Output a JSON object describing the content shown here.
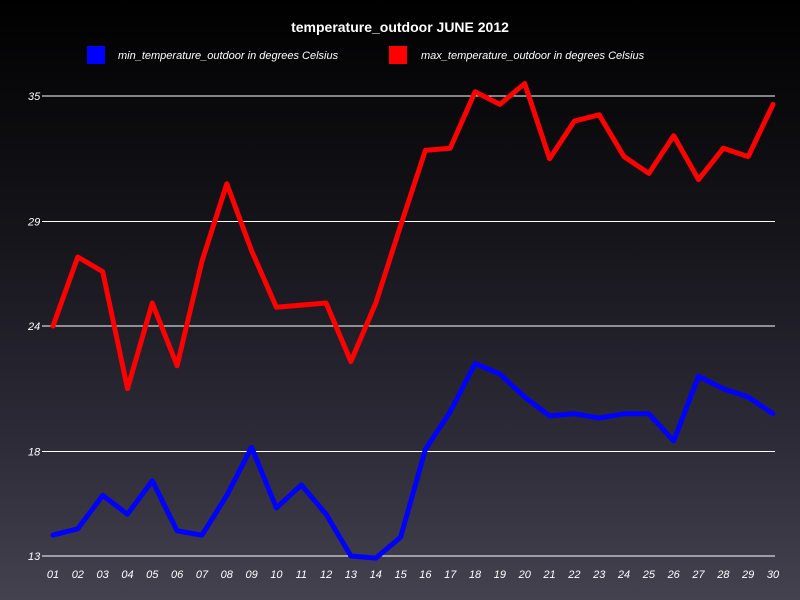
{
  "chart_data": {
    "type": "line",
    "title": "temperature_outdoor JUNE 2012",
    "categories": [
      "01",
      "02",
      "03",
      "04",
      "05",
      "06",
      "07",
      "08",
      "09",
      "10",
      "11",
      "12",
      "13",
      "14",
      "15",
      "16",
      "17",
      "18",
      "19",
      "20",
      "21",
      "22",
      "23",
      "24",
      "25",
      "26",
      "27",
      "28",
      "29",
      "30"
    ],
    "y_ticks": [
      "13",
      "18",
      "24",
      "29",
      "35"
    ],
    "ylim": [
      13,
      35
    ],
    "grid": true,
    "legend_position": "top",
    "series": [
      {
        "name": "min_temperature_outdoor in degrees Celsius",
        "color": "#0000ff",
        "values": [
          14.0,
          14.3,
          15.9,
          15.0,
          16.6,
          14.2,
          14.0,
          15.9,
          18.2,
          15.3,
          16.4,
          15.0,
          13.0,
          12.9,
          13.9,
          18.1,
          19.9,
          22.2,
          21.7,
          20.6,
          19.7,
          19.8,
          19.6,
          19.8,
          19.8,
          18.5,
          21.6,
          21.0,
          20.6,
          19.8
        ]
      },
      {
        "name": "max_temperature_outdoor in degrees Celsius",
        "color": "#ff0000",
        "values": [
          24.0,
          27.3,
          26.6,
          21.0,
          25.1,
          22.1,
          27.1,
          30.8,
          27.6,
          24.9,
          25.0,
          25.1,
          22.3,
          25.1,
          28.8,
          32.4,
          32.5,
          35.2,
          34.6,
          35.6,
          32.0,
          33.8,
          34.1,
          32.1,
          31.3,
          33.1,
          31.0,
          32.5,
          32.1,
          34.6
        ]
      }
    ]
  }
}
